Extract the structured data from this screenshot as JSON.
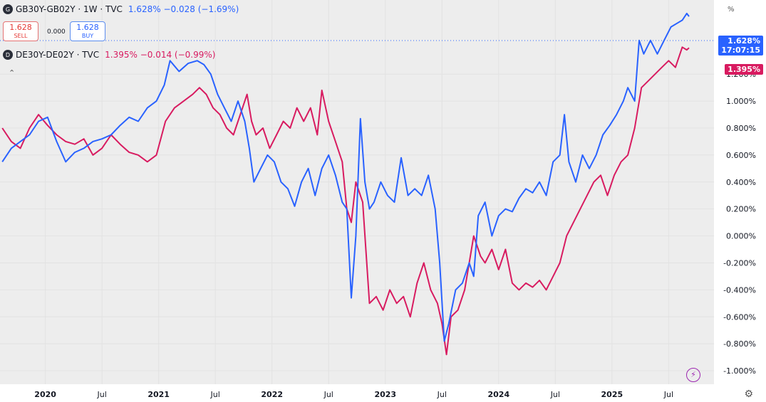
{
  "header": {
    "symbol1_badge": "G",
    "symbol1_title": "GB30Y-GB02Y · 1W · TVC",
    "symbol1_values": "1.628%  −0.028 (−1.69%)",
    "symbol2_badge": "D",
    "symbol2_title": "DE30Y-DE02Y · TVC",
    "symbol2_values": "1.395%  −0.014 (−0.99%)"
  },
  "trade": {
    "sell_price": "1.628",
    "sell_label": "SELL",
    "spread": "0.000",
    "buy_price": "1.628",
    "buy_label": "BUY"
  },
  "scale_unit": "%",
  "price_tags": {
    "gb_value": "1.628%",
    "gb_time": "17:07:15",
    "de_value": "1.395%"
  },
  "colors": {
    "gb": "#2962ff",
    "de": "#d81b60"
  },
  "icons": [
    "collapse-icon",
    "lightning-icon",
    "settings-gear-icon"
  ],
  "chart_data": {
    "type": "line",
    "y_tick_labels": [
      "1.200%",
      "1.000%",
      "0.800%",
      "0.600%",
      "0.400%",
      "0.200%",
      "0.000%",
      "-0.200%",
      "-0.400%",
      "-0.600%",
      "-0.800%",
      "-1.000%"
    ],
    "y_ticks": [
      1.2,
      1.0,
      0.8,
      0.6,
      0.4,
      0.2,
      0.0,
      -0.2,
      -0.4,
      -0.6,
      -0.8,
      -1.0
    ],
    "x_tick_labels": [
      "2020",
      "Jul",
      "2021",
      "Jul",
      "2022",
      "Jul",
      "2023",
      "Jul",
      "2024",
      "Jul",
      "2025",
      "Jul"
    ],
    "x_ticks": [
      2020.0,
      2020.5,
      2021.0,
      2021.5,
      2022.0,
      2022.5,
      2023.0,
      2023.5,
      2024.0,
      2024.5,
      2025.0,
      2025.5
    ],
    "xlim": [
      2019.6,
      2025.9
    ],
    "ylim": [
      -1.1,
      1.75
    ],
    "series": [
      {
        "name": "GB30Y-GB02Y",
        "points": [
          [
            2019.62,
            0.55
          ],
          [
            2019.7,
            0.65
          ],
          [
            2019.78,
            0.7
          ],
          [
            2019.86,
            0.75
          ],
          [
            2019.94,
            0.85
          ],
          [
            2020.02,
            0.88
          ],
          [
            2020.1,
            0.7
          ],
          [
            2020.18,
            0.55
          ],
          [
            2020.26,
            0.62
          ],
          [
            2020.34,
            0.65
          ],
          [
            2020.42,
            0.7
          ],
          [
            2020.5,
            0.72
          ],
          [
            2020.58,
            0.75
          ],
          [
            2020.66,
            0.82
          ],
          [
            2020.74,
            0.88
          ],
          [
            2020.82,
            0.85
          ],
          [
            2020.9,
            0.95
          ],
          [
            2020.98,
            1.0
          ],
          [
            2021.05,
            1.12
          ],
          [
            2021.1,
            1.3
          ],
          [
            2021.18,
            1.22
          ],
          [
            2021.26,
            1.28
          ],
          [
            2021.34,
            1.3
          ],
          [
            2021.4,
            1.27
          ],
          [
            2021.46,
            1.2
          ],
          [
            2021.52,
            1.05
          ],
          [
            2021.58,
            0.95
          ],
          [
            2021.64,
            0.85
          ],
          [
            2021.7,
            1.0
          ],
          [
            2021.76,
            0.85
          ],
          [
            2021.8,
            0.65
          ],
          [
            2021.84,
            0.4
          ],
          [
            2021.9,
            0.5
          ],
          [
            2021.96,
            0.6
          ],
          [
            2022.02,
            0.55
          ],
          [
            2022.08,
            0.4
          ],
          [
            2022.14,
            0.35
          ],
          [
            2022.2,
            0.22
          ],
          [
            2022.26,
            0.4
          ],
          [
            2022.32,
            0.5
          ],
          [
            2022.38,
            0.3
          ],
          [
            2022.44,
            0.5
          ],
          [
            2022.5,
            0.6
          ],
          [
            2022.56,
            0.45
          ],
          [
            2022.62,
            0.25
          ],
          [
            2022.66,
            0.2
          ],
          [
            2022.7,
            -0.46
          ],
          [
            2022.74,
            0.0
          ],
          [
            2022.78,
            0.87
          ],
          [
            2022.82,
            0.4
          ],
          [
            2022.86,
            0.2
          ],
          [
            2022.9,
            0.25
          ],
          [
            2022.96,
            0.4
          ],
          [
            2023.02,
            0.3
          ],
          [
            2023.08,
            0.25
          ],
          [
            2023.14,
            0.58
          ],
          [
            2023.2,
            0.3
          ],
          [
            2023.26,
            0.35
          ],
          [
            2023.32,
            0.3
          ],
          [
            2023.38,
            0.45
          ],
          [
            2023.44,
            0.2
          ],
          [
            2023.48,
            -0.2
          ],
          [
            2023.52,
            -0.78
          ],
          [
            2023.56,
            -0.65
          ],
          [
            2023.62,
            -0.4
          ],
          [
            2023.68,
            -0.35
          ],
          [
            2023.74,
            -0.2
          ],
          [
            2023.78,
            -0.3
          ],
          [
            2023.82,
            0.15
          ],
          [
            2023.88,
            0.25
          ],
          [
            2023.94,
            0.0
          ],
          [
            2024.0,
            0.15
          ],
          [
            2024.06,
            0.2
          ],
          [
            2024.12,
            0.18
          ],
          [
            2024.18,
            0.28
          ],
          [
            2024.24,
            0.35
          ],
          [
            2024.3,
            0.32
          ],
          [
            2024.36,
            0.4
          ],
          [
            2024.42,
            0.3
          ],
          [
            2024.48,
            0.55
          ],
          [
            2024.54,
            0.6
          ],
          [
            2024.58,
            0.9
          ],
          [
            2024.62,
            0.55
          ],
          [
            2024.68,
            0.4
          ],
          [
            2024.74,
            0.6
          ],
          [
            2024.8,
            0.5
          ],
          [
            2024.86,
            0.6
          ],
          [
            2024.92,
            0.75
          ],
          [
            2024.98,
            0.82
          ],
          [
            2025.04,
            0.9
          ],
          [
            2025.1,
            1.0
          ],
          [
            2025.14,
            1.1
          ],
          [
            2025.2,
            1.0
          ],
          [
            2025.24,
            1.45
          ],
          [
            2025.28,
            1.35
          ],
          [
            2025.34,
            1.45
          ],
          [
            2025.4,
            1.35
          ],
          [
            2025.46,
            1.45
          ],
          [
            2025.52,
            1.55
          ],
          [
            2025.58,
            1.58
          ],
          [
            2025.62,
            1.6
          ],
          [
            2025.66,
            1.65
          ],
          [
            2025.68,
            1.628
          ]
        ]
      },
      {
        "name": "DE30Y-DE02Y",
        "points": [
          [
            2019.62,
            0.8
          ],
          [
            2019.7,
            0.7
          ],
          [
            2019.78,
            0.65
          ],
          [
            2019.86,
            0.8
          ],
          [
            2019.94,
            0.9
          ],
          [
            2020.02,
            0.82
          ],
          [
            2020.1,
            0.75
          ],
          [
            2020.18,
            0.7
          ],
          [
            2020.26,
            0.68
          ],
          [
            2020.34,
            0.72
          ],
          [
            2020.42,
            0.6
          ],
          [
            2020.5,
            0.65
          ],
          [
            2020.58,
            0.75
          ],
          [
            2020.66,
            0.68
          ],
          [
            2020.74,
            0.62
          ],
          [
            2020.82,
            0.6
          ],
          [
            2020.9,
            0.55
          ],
          [
            2020.98,
            0.6
          ],
          [
            2021.06,
            0.85
          ],
          [
            2021.14,
            0.95
          ],
          [
            2021.22,
            1.0
          ],
          [
            2021.3,
            1.05
          ],
          [
            2021.36,
            1.1
          ],
          [
            2021.42,
            1.05
          ],
          [
            2021.48,
            0.95
          ],
          [
            2021.54,
            0.9
          ],
          [
            2021.6,
            0.8
          ],
          [
            2021.66,
            0.75
          ],
          [
            2021.72,
            0.9
          ],
          [
            2021.78,
            1.05
          ],
          [
            2021.82,
            0.85
          ],
          [
            2021.86,
            0.75
          ],
          [
            2021.92,
            0.8
          ],
          [
            2021.98,
            0.65
          ],
          [
            2022.04,
            0.75
          ],
          [
            2022.1,
            0.85
          ],
          [
            2022.16,
            0.8
          ],
          [
            2022.22,
            0.95
          ],
          [
            2022.28,
            0.85
          ],
          [
            2022.34,
            0.95
          ],
          [
            2022.4,
            0.75
          ],
          [
            2022.44,
            1.08
          ],
          [
            2022.5,
            0.85
          ],
          [
            2022.56,
            0.7
          ],
          [
            2022.62,
            0.55
          ],
          [
            2022.66,
            0.2
          ],
          [
            2022.7,
            0.1
          ],
          [
            2022.74,
            0.4
          ],
          [
            2022.8,
            0.25
          ],
          [
            2022.86,
            -0.5
          ],
          [
            2022.92,
            -0.45
          ],
          [
            2022.98,
            -0.55
          ],
          [
            2023.04,
            -0.4
          ],
          [
            2023.1,
            -0.5
          ],
          [
            2023.16,
            -0.45
          ],
          [
            2023.22,
            -0.6
          ],
          [
            2023.28,
            -0.35
          ],
          [
            2023.34,
            -0.2
          ],
          [
            2023.4,
            -0.4
          ],
          [
            2023.46,
            -0.5
          ],
          [
            2023.5,
            -0.65
          ],
          [
            2023.54,
            -0.88
          ],
          [
            2023.58,
            -0.6
          ],
          [
            2023.64,
            -0.55
          ],
          [
            2023.7,
            -0.4
          ],
          [
            2023.74,
            -0.2
          ],
          [
            2023.78,
            0.0
          ],
          [
            2023.84,
            -0.15
          ],
          [
            2023.88,
            -0.2
          ],
          [
            2023.94,
            -0.1
          ],
          [
            2024.0,
            -0.25
          ],
          [
            2024.06,
            -0.1
          ],
          [
            2024.12,
            -0.35
          ],
          [
            2024.18,
            -0.4
          ],
          [
            2024.24,
            -0.35
          ],
          [
            2024.3,
            -0.38
          ],
          [
            2024.36,
            -0.33
          ],
          [
            2024.42,
            -0.4
          ],
          [
            2024.48,
            -0.3
          ],
          [
            2024.54,
            -0.2
          ],
          [
            2024.6,
            0.0
          ],
          [
            2024.66,
            0.1
          ],
          [
            2024.72,
            0.2
          ],
          [
            2024.78,
            0.3
          ],
          [
            2024.84,
            0.4
          ],
          [
            2024.9,
            0.45
          ],
          [
            2024.96,
            0.3
          ],
          [
            2025.02,
            0.45
          ],
          [
            2025.08,
            0.55
          ],
          [
            2025.14,
            0.6
          ],
          [
            2025.2,
            0.8
          ],
          [
            2025.26,
            1.1
          ],
          [
            2025.32,
            1.15
          ],
          [
            2025.38,
            1.2
          ],
          [
            2025.44,
            1.25
          ],
          [
            2025.5,
            1.3
          ],
          [
            2025.56,
            1.25
          ],
          [
            2025.62,
            1.4
          ],
          [
            2025.66,
            1.38
          ],
          [
            2025.68,
            1.395
          ]
        ]
      }
    ]
  }
}
